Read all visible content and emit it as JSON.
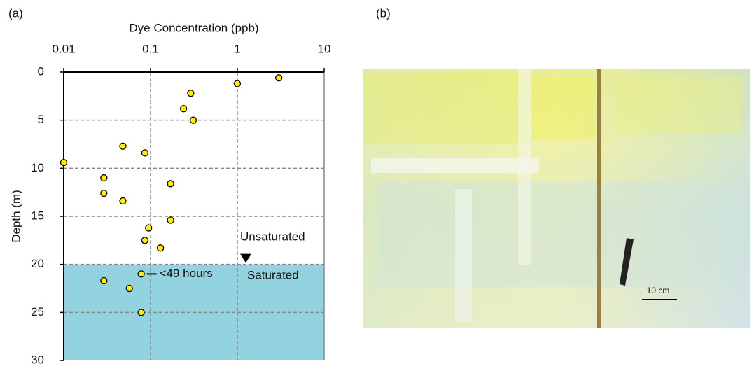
{
  "chart_data": {
    "type": "scatter",
    "panel_label": "(a)",
    "title": "Dye Concentration (ppb)",
    "y_label": "Depth (m)",
    "x": [
      3.0,
      1.0,
      0.29,
      0.24,
      0.31,
      0.048,
      0.086,
      0.01,
      0.029,
      0.17,
      0.029,
      0.048,
      0.17,
      0.095,
      0.086,
      0.13,
      0.078,
      0.029,
      0.057,
      0.078
    ],
    "values": [
      0.6,
      1.2,
      2.2,
      3.8,
      5.0,
      7.7,
      8.4,
      9.4,
      11.0,
      11.6,
      12.6,
      13.4,
      15.4,
      16.2,
      17.5,
      18.3,
      21.0,
      21.7,
      22.5,
      25.0
    ],
    "color": "#ffee00",
    "xlim": [
      0.01,
      10
    ],
    "xticks": [
      0.01,
      0.1,
      1,
      10
    ],
    "x_log": true,
    "ylim": [
      0,
      30
    ],
    "yticks": [
      0,
      5,
      10,
      15,
      20,
      25,
      30
    ],
    "y_reversed": true,
    "grid": true,
    "saturated_depth": 20,
    "saturated_color": "#92d3df",
    "annotations": {
      "unsaturated": "Unsaturated",
      "saturated": "Saturated",
      "time": "<49 hours"
    }
  },
  "photo": {
    "panel_label": "(b)",
    "scale_label": "10 cm"
  }
}
